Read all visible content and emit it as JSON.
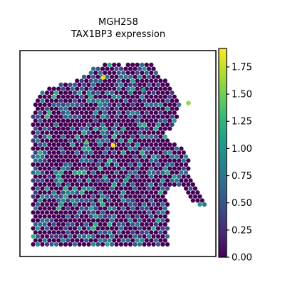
{
  "chart_data": {
    "type": "scatter",
    "subtype": "spatial-transcriptomics-spots",
    "title": [
      "MGH258",
      "TAX1BP3 expression"
    ],
    "xlabel": "",
    "ylabel": "",
    "axes_ticks_visible": false,
    "grid": false,
    "colormap": "viridis",
    "colormap_stops": [
      "#440154",
      "#482878",
      "#3e4989",
      "#31688e",
      "#26828e",
      "#1f9e89",
      "#35b779",
      "#6ece58",
      "#b5de2b",
      "#fde725"
    ],
    "colorbar": {
      "position": "right",
      "vmin": 0.0,
      "vmax": 1.92,
      "ticks": [
        0.0,
        0.25,
        0.5,
        0.75,
        1.0,
        1.25,
        1.5,
        1.75
      ],
      "tick_labels": [
        "0.00",
        "0.25",
        "0.50",
        "0.75",
        "1.00",
        "1.25",
        "1.50",
        "1.75"
      ]
    },
    "value_distribution": {
      "zero_fraction": 0.62,
      "low_range": [
        0.3,
        0.75
      ],
      "mid_range": [
        0.8,
        1.25
      ]
    },
    "highlighted_spots": [
      {
        "x": 0.475,
        "y": 0.54,
        "value": 1.92
      },
      {
        "x": 0.34,
        "y": 0.555,
        "value": 1.4
      },
      {
        "x": 0.425,
        "y": 0.87,
        "value": 1.85
      },
      {
        "x": 0.86,
        "y": 0.745,
        "value": 1.6
      },
      {
        "x": 0.53,
        "y": 0.62,
        "value": 1.2
      },
      {
        "x": 0.36,
        "y": 0.78,
        "value": 1.25
      },
      {
        "x": 0.15,
        "y": 0.7,
        "value": 1.3
      },
      {
        "x": 0.55,
        "y": 0.38,
        "value": 1.15
      },
      {
        "x": 0.63,
        "y": 0.81,
        "value": 1.05
      }
    ]
  }
}
